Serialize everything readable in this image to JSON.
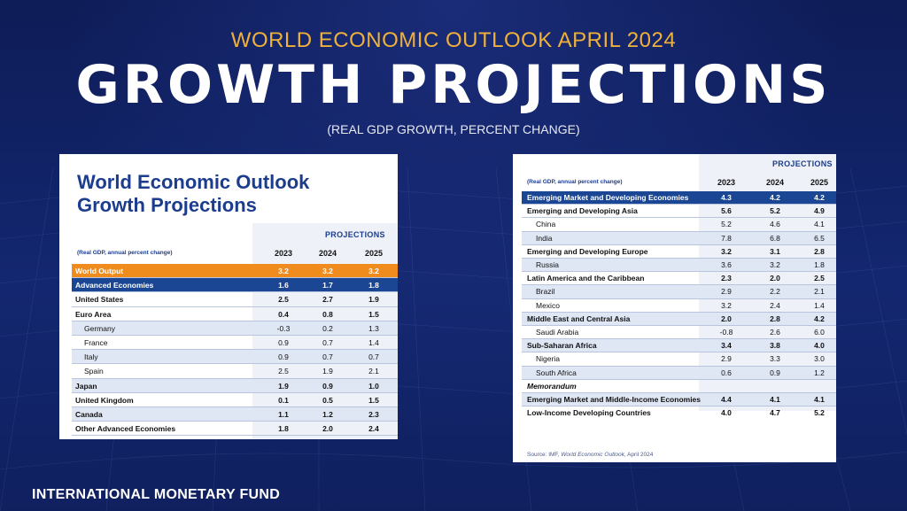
{
  "header": {
    "overtitle": "WORLD ECONOMIC OUTLOOK APRIL 2024",
    "title": "GROWTH PROJECTIONS",
    "subtitle": "(REAL GDP GROWTH, PERCENT CHANGE)"
  },
  "footer": "INTERNATIONAL MONETARY FUND",
  "left_table": {
    "title_line1": "World Economic Outlook",
    "title_line2": "Growth Projections",
    "projections_label": "PROJECTIONS",
    "note": "(Real GDP, annual percent change)",
    "years": [
      "2023",
      "2024",
      "2025"
    ],
    "rows": [
      {
        "label": "World Output",
        "v": [
          "3.2",
          "3.2",
          "3.2"
        ],
        "style": "hl-orange",
        "indent": false
      },
      {
        "label": "Advanced Economies",
        "v": [
          "1.6",
          "1.7",
          "1.8"
        ],
        "style": "hl-blue",
        "indent": false
      },
      {
        "label": "United States",
        "v": [
          "2.5",
          "2.7",
          "1.9"
        ],
        "style": "bold",
        "indent": false
      },
      {
        "label": "Euro Area",
        "v": [
          "0.4",
          "0.8",
          "1.5"
        ],
        "style": "bold",
        "indent": false
      },
      {
        "label": "Germany",
        "v": [
          "-0.3",
          "0.2",
          "1.3"
        ],
        "style": "alt",
        "indent": true
      },
      {
        "label": "France",
        "v": [
          "0.9",
          "0.7",
          "1.4"
        ],
        "style": "",
        "indent": true
      },
      {
        "label": "Italy",
        "v": [
          "0.9",
          "0.7",
          "0.7"
        ],
        "style": "alt",
        "indent": true
      },
      {
        "label": "Spain",
        "v": [
          "2.5",
          "1.9",
          "2.1"
        ],
        "style": "",
        "indent": true
      },
      {
        "label": "Japan",
        "v": [
          "1.9",
          "0.9",
          "1.0"
        ],
        "style": "alt bold",
        "indent": false
      },
      {
        "label": "United Kingdom",
        "v": [
          "0.1",
          "0.5",
          "1.5"
        ],
        "style": "bold",
        "indent": false
      },
      {
        "label": "Canada",
        "v": [
          "1.1",
          "1.2",
          "2.3"
        ],
        "style": "alt bold",
        "indent": false
      },
      {
        "label": "Other Advanced Economies",
        "v": [
          "1.8",
          "2.0",
          "2.4"
        ],
        "style": "bold",
        "indent": false
      }
    ]
  },
  "right_table": {
    "projections_label": "PROJECTIONS",
    "note": "(Real GDP, annual percent change)",
    "years": [
      "2023",
      "2024",
      "2025"
    ],
    "rows": [
      {
        "label": "Emerging Market and Developing Economies",
        "v": [
          "4.3",
          "4.2",
          "4.2"
        ],
        "style": "hl-blue",
        "indent": false
      },
      {
        "label": "Emerging and Developing Asia",
        "v": [
          "5.6",
          "5.2",
          "4.9"
        ],
        "style": "bold",
        "indent": false
      },
      {
        "label": "China",
        "v": [
          "5.2",
          "4.6",
          "4.1"
        ],
        "style": "",
        "indent": true
      },
      {
        "label": "India",
        "v": [
          "7.8",
          "6.8",
          "6.5"
        ],
        "style": "alt",
        "indent": true
      },
      {
        "label": "Emerging and Developing Europe",
        "v": [
          "3.2",
          "3.1",
          "2.8"
        ],
        "style": "bold",
        "indent": false
      },
      {
        "label": "Russia",
        "v": [
          "3.6",
          "3.2",
          "1.8"
        ],
        "style": "alt",
        "indent": true
      },
      {
        "label": "Latin America and the Caribbean",
        "v": [
          "2.3",
          "2.0",
          "2.5"
        ],
        "style": "bold",
        "indent": false
      },
      {
        "label": "Brazil",
        "v": [
          "2.9",
          "2.2",
          "2.1"
        ],
        "style": "alt",
        "indent": true
      },
      {
        "label": "Mexico",
        "v": [
          "3.2",
          "2.4",
          "1.4"
        ],
        "style": "",
        "indent": true
      },
      {
        "label": "Middle East and Central Asia",
        "v": [
          "2.0",
          "2.8",
          "4.2"
        ],
        "style": "alt bold",
        "indent": false
      },
      {
        "label": "Saudi Arabia",
        "v": [
          "-0.8",
          "2.6",
          "6.0"
        ],
        "style": "",
        "indent": true
      },
      {
        "label": "Sub-Saharan Africa",
        "v": [
          "3.4",
          "3.8",
          "4.0"
        ],
        "style": "alt bold",
        "indent": false
      },
      {
        "label": "Nigeria",
        "v": [
          "2.9",
          "3.3",
          "3.0"
        ],
        "style": "",
        "indent": true
      },
      {
        "label": "South Africa",
        "v": [
          "0.6",
          "0.9",
          "1.2"
        ],
        "style": "alt",
        "indent": true
      },
      {
        "label": "Memorandum",
        "v": [
          "",
          "",
          ""
        ],
        "style": "memo",
        "indent": false
      },
      {
        "label": "Emerging Market and Middle-Income Economies",
        "v": [
          "4.4",
          "4.1",
          "4.1"
        ],
        "style": "alt bold",
        "indent": false
      },
      {
        "label": "Low-Income Developing Countries",
        "v": [
          "4.0",
          "4.7",
          "5.2"
        ],
        "style": "bold nob",
        "indent": false
      }
    ],
    "source_prefix": "Source: IMF, ",
    "source_italic": "World Economic Outlook",
    "source_suffix": ", April 2024"
  }
}
